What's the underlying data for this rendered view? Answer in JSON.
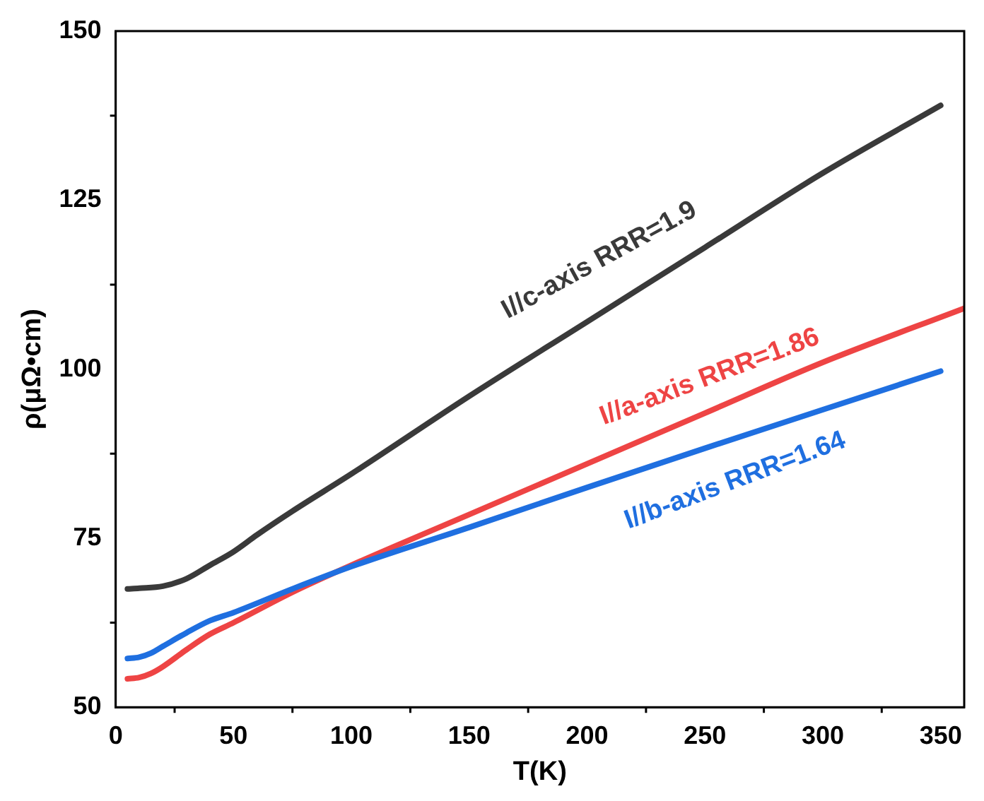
{
  "chart_data": {
    "type": "line",
    "xlabel": "T(K)",
    "ylabel": "ρ(μΩ•cm)",
    "xlim": [
      0,
      360
    ],
    "xticks": [
      0,
      50,
      100,
      150,
      200,
      250,
      300,
      350
    ],
    "ylim": [
      50,
      150
    ],
    "yticks": [
      50,
      75,
      100,
      125,
      150
    ],
    "grid": false,
    "legend": false,
    "marker": "none",
    "line_style": "solid",
    "series": [
      {
        "color": "#3a3a3a",
        "x": [
          5,
          10,
          20,
          30,
          40,
          50,
          60,
          75,
          100,
          150,
          200,
          250,
          300,
          350
        ],
        "values": [
          67.5,
          67.6,
          67.9,
          69,
          71,
          73,
          75.5,
          79,
          84.5,
          96,
          107,
          118,
          129,
          139
        ]
      },
      {
        "color": "#ee4444",
        "x": [
          5,
          10,
          15,
          20,
          30,
          40,
          50,
          75,
          100,
          150,
          200,
          250,
          300,
          360
        ],
        "values": [
          54.2,
          54.4,
          55,
          56,
          58.5,
          60.8,
          62.5,
          67,
          71,
          78.5,
          86,
          93.5,
          101,
          109
        ]
      },
      {
        "color": "#1f6fe0",
        "x": [
          5,
          10,
          15,
          20,
          30,
          40,
          50,
          75,
          100,
          150,
          200,
          250,
          300,
          350
        ],
        "values": [
          57.2,
          57.4,
          58,
          59,
          61,
          62.8,
          64,
          67.5,
          70.8,
          76.6,
          82.5,
          88.3,
          94,
          99.7
        ]
      }
    ],
    "annotations": [
      "I//c-axis RRR=1.9",
      "I//a-axis RRR=1.86",
      "I//b-axis RRR=1.64"
    ]
  }
}
